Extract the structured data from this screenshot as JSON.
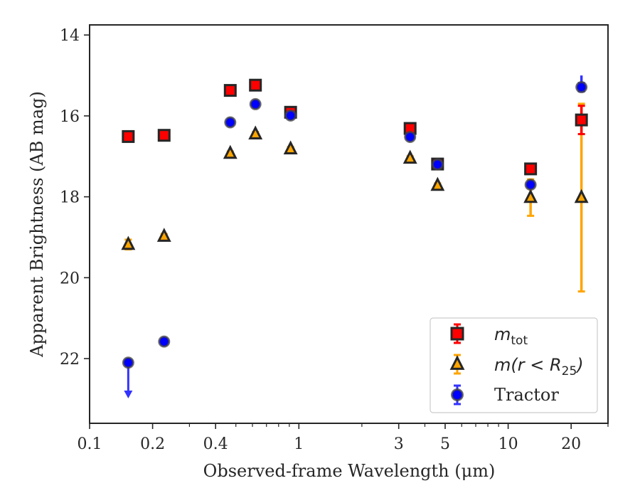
{
  "chart_data": {
    "type": "scatter",
    "xlabel": "Observed-frame Wavelength (μm)",
    "ylabel": "Apparent Brightness (AB mag)",
    "xscale": "log",
    "xlim": [
      0.1,
      30
    ],
    "ylim": [
      23.6,
      13.75
    ],
    "y_inverted": true,
    "x_ticks": [
      {
        "value": 0.1,
        "label": "0.1"
      },
      {
        "value": 0.2,
        "label": "0.2"
      },
      {
        "value": 0.4,
        "label": "0.4"
      },
      {
        "value": 1,
        "label": "1"
      },
      {
        "value": 3,
        "label": "3"
      },
      {
        "value": 5,
        "label": "5"
      },
      {
        "value": 10,
        "label": "10"
      },
      {
        "value": 20,
        "label": "20"
      }
    ],
    "y_ticks": [
      14,
      16,
      18,
      20,
      22
    ],
    "legend_position": "lower right",
    "series": [
      {
        "name": "m_tot",
        "legend_main": "m",
        "legend_sub": "tot",
        "marker": "square",
        "color": "#ff0000",
        "errcolor": "#ff0000",
        "points": [
          {
            "x": 0.153,
            "y": 16.51,
            "err": 0.05
          },
          {
            "x": 0.227,
            "y": 16.48,
            "err": 0.05
          },
          {
            "x": 0.47,
            "y": 15.37,
            "err": 0.05
          },
          {
            "x": 0.62,
            "y": 15.24,
            "err": 0.05
          },
          {
            "x": 0.913,
            "y": 15.91,
            "err": 0.05
          },
          {
            "x": 3.4,
            "y": 16.31,
            "err": 0.05
          },
          {
            "x": 4.6,
            "y": 17.19,
            "err": 0.05
          },
          {
            "x": 12.8,
            "y": 17.31,
            "err": 0.05
          },
          {
            "x": 22.4,
            "y": 16.1,
            "err": 0.35
          }
        ]
      },
      {
        "name": "m(r < R25)",
        "legend_main": "m(r < R",
        "legend_sub": "25",
        "legend_tail": ")",
        "marker": "triangle",
        "color": "#ffa500",
        "errcolor": "#ffa500",
        "points": [
          {
            "x": 0.153,
            "y": 19.18,
            "err": 0.12
          },
          {
            "x": 0.227,
            "y": 18.98,
            "err": 0.06
          },
          {
            "x": 0.47,
            "y": 16.93,
            "err": 0.05
          },
          {
            "x": 0.62,
            "y": 16.45,
            "err": 0.05
          },
          {
            "x": 0.913,
            "y": 16.82,
            "err": 0.05
          },
          {
            "x": 3.4,
            "y": 17.05,
            "err": 0.05
          },
          {
            "x": 4.6,
            "y": 17.72,
            "err": 0.05
          },
          {
            "x": 12.8,
            "y": 18.02,
            "err": 0.45
          },
          {
            "x": 22.4,
            "y": 18.02,
            "err": 2.32
          }
        ]
      },
      {
        "name": "Tractor",
        "marker": "circle",
        "color": "#0000ff",
        "errcolor": "#3333ff",
        "points": [
          {
            "x": 0.153,
            "y": 22.1,
            "upper_limit": true,
            "limit_to": 22.95
          },
          {
            "x": 0.227,
            "y": 21.58,
            "err": 0.06
          },
          {
            "x": 0.47,
            "y": 16.16,
            "err": 0.05
          },
          {
            "x": 0.62,
            "y": 15.71,
            "err": 0.05
          },
          {
            "x": 0.913,
            "y": 15.99,
            "err": 0.05
          },
          {
            "x": 3.4,
            "y": 16.52,
            "err": 0.05
          },
          {
            "x": 4.6,
            "y": 17.2,
            "err": 0.05
          },
          {
            "x": 12.8,
            "y": 17.7,
            "err": 0.05
          },
          {
            "x": 22.4,
            "y": 15.29,
            "err": 0.1,
            "err_up_bar": 15.0
          }
        ]
      }
    ]
  }
}
